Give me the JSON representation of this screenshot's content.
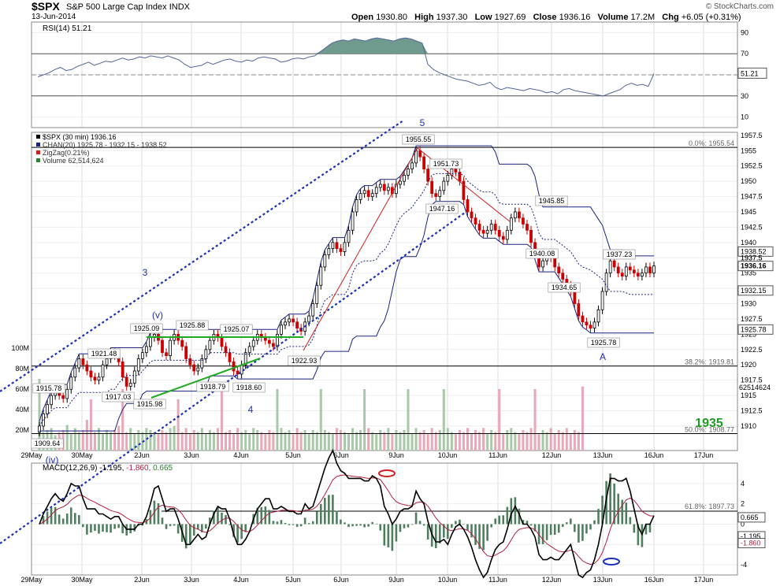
{
  "header": {
    "symbol": "$SPX",
    "name": "S&P 500 Large Cap Index",
    "exchange": "INDX",
    "date": "13-Jun-2014",
    "watermark": "© StockCharts.com",
    "open_label": "Open",
    "open": "1930.80",
    "high_label": "High",
    "high": "1937.30",
    "low_label": "Low",
    "low": "1927.69",
    "close_label": "Close",
    "close": "1936.16",
    "volume_label": "Volume",
    "volume": "17.2M",
    "chg_label": "Chg",
    "chg": "+6.05 (+0.31%)"
  },
  "chart_data": [
    {
      "type": "line",
      "panel": "rsi",
      "legend": "RSI(14) 51.21",
      "ylim": [
        0,
        100
      ],
      "ticks": [
        10,
        30,
        50,
        70,
        90
      ],
      "levels": [
        30,
        70
      ],
      "last_label": "51.21",
      "x": [
        0,
        2,
        4,
        6,
        8,
        10,
        12,
        14,
        16,
        18,
        20,
        22,
        24,
        26,
        28,
        30,
        32,
        34,
        36,
        38,
        40,
        42,
        44,
        46,
        48,
        50,
        52,
        54,
        56,
        58,
        60,
        62,
        64,
        66,
        68,
        70,
        72,
        74,
        76,
        78,
        80,
        82,
        84,
        86,
        88,
        90,
        92,
        94,
        96,
        98,
        100,
        102,
        104,
        106,
        108,
        110,
        112,
        114,
        116,
        118,
        120,
        122,
        124,
        126,
        128,
        130,
        132,
        134,
        136,
        138,
        140,
        142,
        144,
        146,
        148,
        150,
        152,
        154,
        156,
        158,
        160,
        162,
        164,
        166,
        168,
        170,
        172,
        174,
        176,
        178,
        180,
        182,
        184,
        186,
        188,
        190,
        192,
        194,
        196,
        198,
        200,
        202,
        204,
        206,
        208,
        210,
        212,
        214,
        216,
        218
      ],
      "y": [
        48,
        50,
        52,
        55,
        57,
        54,
        55,
        58,
        60,
        62,
        59,
        61,
        63,
        62,
        64,
        66,
        64,
        65,
        67,
        66,
        68,
        67,
        66,
        68,
        66,
        64,
        60,
        57,
        58,
        59,
        62,
        60,
        62,
        64,
        65,
        63,
        62,
        64,
        63,
        66,
        67,
        66,
        65,
        62,
        63,
        65,
        66,
        65,
        67,
        68,
        72,
        76,
        80,
        82,
        83,
        82,
        84,
        83,
        82,
        84,
        85,
        84,
        83,
        82,
        84,
        85,
        84,
        82,
        80,
        60,
        55,
        52,
        50,
        48,
        46,
        45,
        44,
        42,
        40,
        41,
        43,
        38,
        36,
        38,
        37,
        36,
        35,
        37,
        36,
        35,
        33,
        34,
        32,
        36,
        37,
        35,
        34,
        33,
        32,
        31,
        30,
        32,
        34,
        36,
        40,
        42,
        40,
        41,
        39,
        51.21
      ]
    },
    {
      "type": "candlestick",
      "panel": "price",
      "legend": [
        "$SPX (30 min) 1936.16",
        "CHAN(20) 1925.78 - 1932.15 - 1938.52",
        "ZigZag(0.21%)",
        "Volume 62,514,624"
      ],
      "ylim": [
        1906,
        1958
      ],
      "ticks": [
        1910,
        1912.5,
        1915,
        1917.5,
        1920,
        1922.5,
        1925,
        1927.5,
        1930,
        1932.5,
        1935,
        1937.5,
        1940,
        1942.5,
        1945,
        1947.5,
        1950,
        1952.5,
        1955,
        1957.5
      ],
      "categories": [
        "29May",
        "30May",
        "2Jun",
        "3Jun",
        "4Jun",
        "5Jun",
        "6Jun",
        "9Jun",
        "10Jun",
        "11Jun",
        "12Jun",
        "13Jun",
        "16Jun",
        "17Jun"
      ],
      "close": [
        1910,
        1912,
        1913.5,
        1915,
        1916,
        1915,
        1914.5,
        1916,
        1918,
        1919.5,
        1921,
        1920,
        1919,
        1918,
        1917.5,
        1918,
        1920,
        1921,
        1922,
        1921.5,
        1920.5,
        1918,
        1916.5,
        1917,
        1919,
        1921,
        1922,
        1923,
        1924.5,
        1925,
        1924,
        1922,
        1921.5,
        1924,
        1925,
        1924,
        1923,
        1921,
        1920,
        1919,
        1919.5,
        1921,
        1922.5,
        1924,
        1925,
        1924.5,
        1923,
        1922,
        1920.5,
        1919,
        1918.5,
        1920,
        1922,
        1923,
        1924,
        1925,
        1924.5,
        1924,
        1923.5,
        1923,
        1925,
        1926.5,
        1927,
        1927.5,
        1927,
        1926,
        1925.5,
        1927,
        1928,
        1930,
        1933,
        1936,
        1938,
        1939,
        1940,
        1939,
        1938.5,
        1940,
        1942,
        1945,
        1947,
        1948,
        1948.5,
        1947.5,
        1948,
        1949,
        1949.5,
        1948.5,
        1949,
        1948,
        1949.5,
        1950,
        1951,
        1952,
        1953,
        1955,
        1954,
        1952,
        1950,
        1948,
        1947.5,
        1948.5,
        1950,
        1951,
        1952,
        1951.5,
        1950,
        1947,
        1945,
        1944,
        1943,
        1942,
        1941.5,
        1942,
        1943,
        1942,
        1941,
        1940.5,
        1942,
        1944,
        1945,
        1944,
        1943,
        1942,
        1940,
        1938,
        1936,
        1937,
        1938,
        1937.5,
        1936,
        1935,
        1934,
        1933,
        1932,
        1930,
        1928,
        1927,
        1926.5,
        1926,
        1927,
        1929,
        1932,
        1935,
        1937,
        1936,
        1935,
        1934.5,
        1936,
        1935.5,
        1935,
        1934.5,
        1935,
        1936,
        1935,
        1936.16
      ],
      "volume_millions": [
        70,
        18,
        20,
        22,
        15,
        18,
        20,
        25,
        16,
        22,
        18,
        20,
        30,
        50,
        18,
        22,
        16,
        20,
        18,
        20,
        24,
        60,
        18,
        22,
        16,
        20,
        18,
        22,
        20,
        18,
        16,
        20,
        18,
        22,
        24,
        50,
        18,
        22,
        16,
        20,
        18,
        22,
        16,
        20,
        18,
        22,
        60,
        18,
        20,
        16,
        22,
        18,
        20,
        16,
        22,
        20,
        18,
        16,
        20,
        18,
        60,
        22,
        18,
        20,
        16,
        22,
        18,
        20,
        16,
        20,
        18,
        60,
        20,
        18,
        16,
        22,
        20,
        18,
        16,
        22,
        18,
        20,
        60,
        22,
        18,
        16,
        20,
        18,
        22,
        16,
        20,
        18,
        20,
        60,
        16,
        22,
        18,
        20,
        16,
        22,
        18,
        20,
        60,
        22,
        18,
        16,
        20,
        18,
        22,
        16,
        20,
        18,
        22,
        16,
        20,
        18,
        60,
        16,
        20,
        22,
        18,
        16,
        20,
        18,
        22,
        60,
        16,
        20,
        18,
        22,
        16,
        20,
        18,
        22,
        16,
        20,
        18,
        62.5
      ],
      "annotations": [
        "1915.78",
        "1909.64",
        "1921.48",
        "1917.03",
        "1925.09",
        "1915.98",
        "1925.88",
        "1918.79",
        "1925.07",
        "1918.60",
        "1922.93",
        "1955.55",
        "1951.73",
        "1947.16",
        "1945.85",
        "1940.08",
        "1934.65",
        "1937.23",
        "1925.78",
        "(v)",
        "3",
        "4",
        "5",
        "A",
        "(iv)"
      ],
      "fib": [
        {
          "label": "0.0%: 1955.54",
          "value": 1955.54
        },
        {
          "label": "38.2%: 1919.81",
          "value": 1919.81
        },
        {
          "label": "50.0%: 1908.77",
          "value": 1908.77
        },
        {
          "label": "61.8%: 1897.73",
          "value": 1897.73
        }
      ],
      "right_labels": [
        "1938.52",
        "1937.5",
        "1936.16",
        "1932.15",
        "1925.78",
        "62514624"
      ],
      "note": "1935",
      "volume_ticks": [
        "20M",
        "40M",
        "60M",
        "80M",
        "100M"
      ]
    },
    {
      "type": "line",
      "panel": "macd",
      "legend_name": "MACD(12,26,9)",
      "legend_macd": "-1.195",
      "legend_signal": "-1.860",
      "legend_hist": "0.665",
      "ylim": [
        -5,
        6
      ],
      "ticks": [
        -4,
        -2,
        0,
        2,
        4
      ],
      "right_labels": [
        "0.665",
        "-1.195",
        "-1.860"
      ]
    }
  ]
}
